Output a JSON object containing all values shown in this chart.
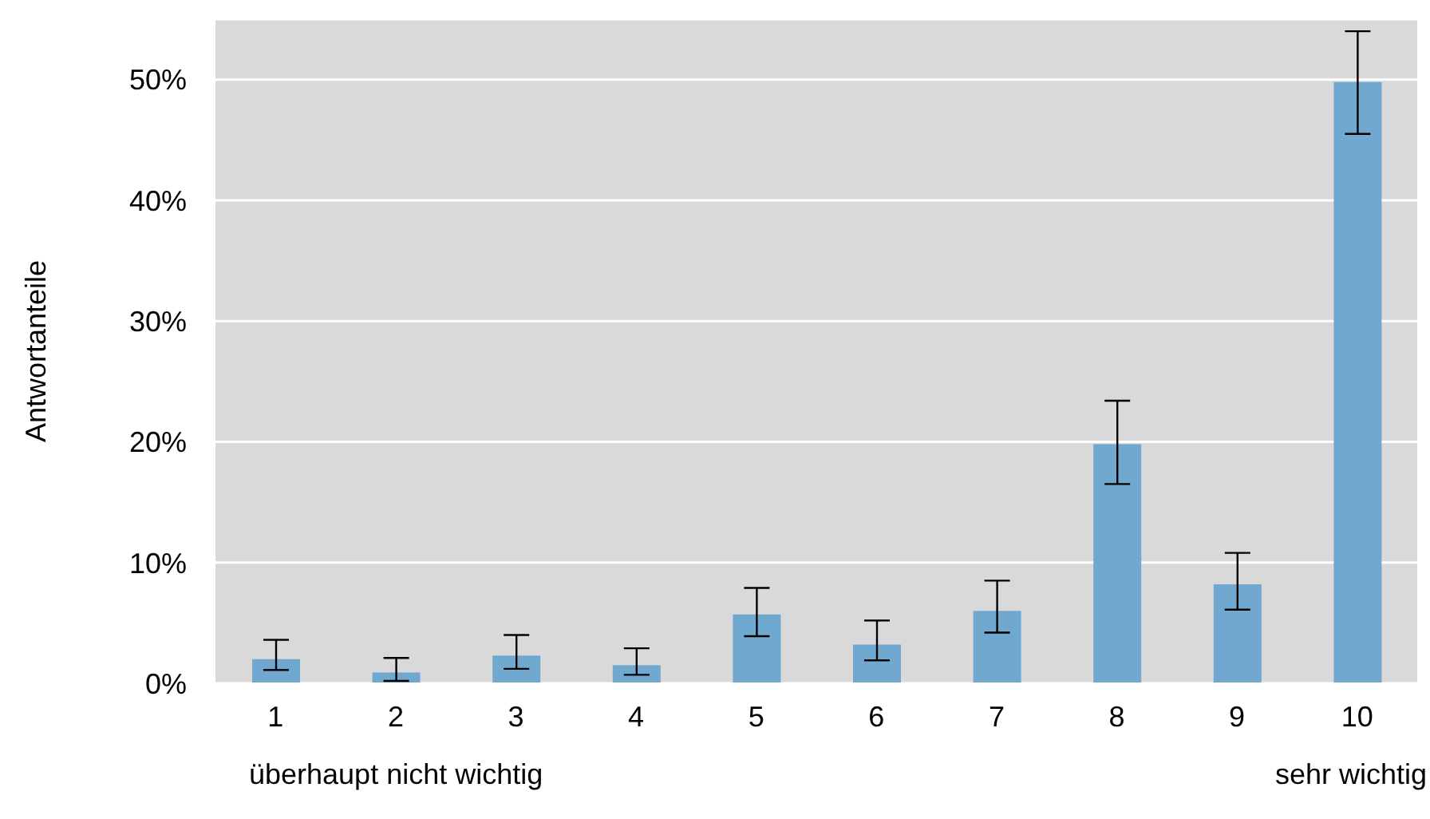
{
  "chart_data": {
    "type": "bar",
    "ylabel": "Antwortanteile",
    "categories": [
      "1",
      "2",
      "3",
      "4",
      "5",
      "6",
      "7",
      "8",
      "9",
      "10"
    ],
    "values": [
      2.0,
      0.9,
      2.3,
      1.5,
      5.7,
      3.2,
      6.0,
      19.8,
      8.2,
      49.8
    ],
    "errors": [
      [
        1.1,
        3.6
      ],
      [
        0.2,
        2.1
      ],
      [
        1.2,
        4.0
      ],
      [
        0.7,
        2.9
      ],
      [
        3.9,
        7.9
      ],
      [
        1.9,
        5.2
      ],
      [
        4.2,
        8.5
      ],
      [
        16.5,
        23.4
      ],
      [
        6.1,
        10.8
      ],
      [
        45.5,
        54.0
      ]
    ],
    "color": "#71a8d0",
    "ylim": [
      0,
      55
    ],
    "yticks": [
      {
        "value": 0,
        "label": "0%"
      },
      {
        "value": 10,
        "label": "10%"
      },
      {
        "value": 20,
        "label": "20%"
      },
      {
        "value": 30,
        "label": "30%"
      },
      {
        "value": 40,
        "label": "40%"
      },
      {
        "value": 50,
        "label": "50%"
      }
    ],
    "grid": "y",
    "annotations": [
      "überhaupt nicht wichtig",
      "sehr wichtig"
    ]
  }
}
